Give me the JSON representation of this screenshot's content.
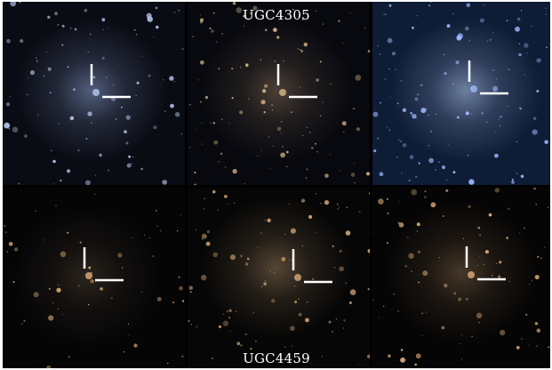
{
  "rows": [
    {
      "name": "UGC4305",
      "panels": [
        {
          "id": "p1",
          "bg": "#0a0c14",
          "glow": "#8a9fd0",
          "glowStrength": 0.55,
          "star": "#b9c8ee",
          "starCount": 90,
          "seed": 11
        },
        {
          "id": "p2",
          "bg": "#08090f",
          "glow": "#b09070",
          "glowStrength": 0.4,
          "star": "#d8b88a",
          "starCount": 110,
          "seed": 23
        },
        {
          "id": "p3",
          "bg": "#0f1c36",
          "glow": "#b8cdf5",
          "glowStrength": 0.55,
          "star": "#9fb9ff",
          "starCount": 120,
          "seed": 37
        }
      ]
    },
    {
      "name": "UGC4459",
      "panels": [
        {
          "id": "p4",
          "bg": "#050506",
          "glow": "#a08060",
          "glowStrength": 0.25,
          "star": "#e2b07a",
          "starCount": 55,
          "seed": 41
        },
        {
          "id": "p5",
          "bg": "#060606",
          "glow": "#b8946c",
          "glowStrength": 0.45,
          "star": "#d8aa78",
          "starCount": 95,
          "seed": 53
        },
        {
          "id": "p6",
          "bg": "#060505",
          "glow": "#a4825e",
          "glowStrength": 0.4,
          "star": "#dcae7a",
          "starCount": 85,
          "seed": 67
        }
      ]
    }
  ],
  "marker_color": "#ffffff"
}
